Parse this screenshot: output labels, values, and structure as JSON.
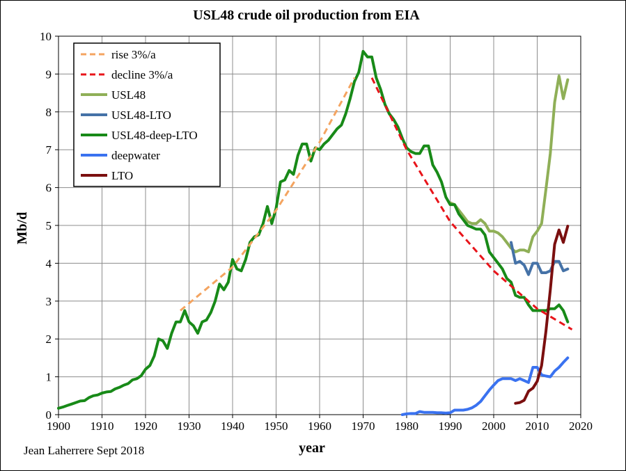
{
  "chart_data": {
    "type": "line",
    "title": "USL48 crude oil production from EIA",
    "xlabel": "year",
    "ylabel": "Mb/d",
    "xlim": [
      1900,
      2020
    ],
    "ylim": [
      0,
      10
    ],
    "x_ticks": [
      "1900",
      "1910",
      "1920",
      "1930",
      "1940",
      "1950",
      "1960",
      "1970",
      "1980",
      "1990",
      "2000",
      "2010",
      "2020"
    ],
    "y_ticks": [
      "0",
      "1",
      "2",
      "3",
      "4",
      "5",
      "6",
      "7",
      "8",
      "9",
      "10"
    ],
    "grid": true,
    "legend_position": "top-left",
    "credit": "Jean Laherrere Sept 2018",
    "series": [
      {
        "name": "rise  3%/a",
        "color": "#f4a460",
        "dashed": true,
        "width": 3,
        "x": [
          1928,
          1940,
          1950,
          1960,
          1968
        ],
        "y": [
          2.75,
          3.9,
          5.4,
          7.2,
          8.9
        ]
      },
      {
        "name": "decline 3%/a",
        "color": "#e8141a",
        "dashed": true,
        "width": 3,
        "x": [
          1972,
          1980,
          1990,
          2000,
          2010,
          2018
        ],
        "y": [
          8.9,
          7.0,
          5.1,
          3.8,
          2.8,
          2.25
        ]
      },
      {
        "name": "USL48",
        "color": "#8faf57",
        "dashed": false,
        "width": 4,
        "x": [
          1990,
          1991,
          1992,
          1993,
          1994,
          1995,
          1996,
          1997,
          1998,
          1999,
          2000,
          2001,
          2002,
          2003,
          2004,
          2005,
          2006,
          2007,
          2008,
          2009,
          2010,
          2011,
          2012,
          2013,
          2014,
          2015,
          2016,
          2017
        ],
        "y": [
          5.6,
          5.55,
          5.4,
          5.25,
          5.1,
          5.05,
          5.05,
          5.15,
          5.05,
          4.85,
          4.85,
          4.8,
          4.7,
          4.55,
          4.4,
          4.3,
          4.35,
          4.35,
          4.3,
          4.7,
          4.85,
          5.05,
          5.95,
          6.9,
          8.25,
          8.95,
          8.35,
          8.85
        ]
      },
      {
        "name": "USL48-LTO",
        "color": "#4572a7",
        "dashed": false,
        "width": 4,
        "x": [
          2004,
          2005,
          2006,
          2007,
          2008,
          2009,
          2010,
          2011,
          2012,
          2013,
          2014,
          2015,
          2016,
          2017
        ],
        "y": [
          4.55,
          4.0,
          4.05,
          3.95,
          3.7,
          4.0,
          4.0,
          3.75,
          3.75,
          3.8,
          4.05,
          4.05,
          3.8,
          3.85
        ]
      },
      {
        "name": "USL48-deep-LTO",
        "color": "#188a18",
        "dashed": false,
        "width": 4,
        "x": [
          1900,
          1901,
          1902,
          1903,
          1904,
          1905,
          1906,
          1907,
          1908,
          1909,
          1910,
          1911,
          1912,
          1913,
          1914,
          1915,
          1916,
          1917,
          1918,
          1919,
          1920,
          1921,
          1922,
          1923,
          1924,
          1925,
          1926,
          1927,
          1928,
          1929,
          1930,
          1931,
          1932,
          1933,
          1934,
          1935,
          1936,
          1937,
          1938,
          1939,
          1940,
          1941,
          1942,
          1943,
          1944,
          1945,
          1946,
          1947,
          1948,
          1949,
          1950,
          1951,
          1952,
          1953,
          1954,
          1955,
          1956,
          1957,
          1958,
          1959,
          1960,
          1961,
          1962,
          1963,
          1964,
          1965,
          1966,
          1967,
          1968,
          1969,
          1970,
          1971,
          1972,
          1973,
          1974,
          1975,
          1976,
          1977,
          1978,
          1979,
          1980,
          1981,
          1982,
          1983,
          1984,
          1985,
          1986,
          1987,
          1988,
          1989,
          1990,
          1991,
          1992,
          1993,
          1994,
          1995,
          1996,
          1997,
          1998,
          1999,
          2000,
          2001,
          2002,
          2003,
          2004,
          2005,
          2006,
          2007,
          2008,
          2009,
          2010,
          2011,
          2012,
          2013,
          2014,
          2015,
          2016,
          2017
        ],
        "y": [
          0.17,
          0.2,
          0.24,
          0.28,
          0.32,
          0.36,
          0.37,
          0.45,
          0.5,
          0.52,
          0.57,
          0.6,
          0.61,
          0.68,
          0.72,
          0.78,
          0.82,
          0.92,
          0.95,
          1.03,
          1.2,
          1.3,
          1.55,
          2.0,
          1.95,
          1.75,
          2.15,
          2.45,
          2.45,
          2.75,
          2.45,
          2.35,
          2.15,
          2.45,
          2.5,
          2.7,
          3.0,
          3.45,
          3.3,
          3.5,
          4.1,
          3.85,
          3.8,
          4.1,
          4.55,
          4.7,
          4.75,
          5.05,
          5.5,
          5.05,
          5.45,
          6.15,
          6.2,
          6.45,
          6.35,
          6.85,
          7.15,
          7.15,
          6.7,
          7.05,
          7.0,
          7.15,
          7.25,
          7.4,
          7.55,
          7.65,
          7.95,
          8.35,
          8.8,
          9.05,
          9.6,
          9.45,
          9.45,
          8.9,
          8.6,
          8.2,
          7.95,
          7.8,
          7.6,
          7.3,
          7.05,
          6.95,
          6.9,
          6.9,
          7.1,
          7.1,
          6.6,
          6.4,
          6.15,
          5.75,
          5.55,
          5.55,
          5.3,
          5.15,
          5.0,
          4.95,
          4.9,
          4.9,
          4.75,
          4.3,
          4.15,
          4.0,
          3.85,
          3.6,
          3.5,
          3.15,
          3.1,
          3.1,
          2.9,
          2.75,
          2.75,
          2.75,
          2.75,
          2.8,
          2.8,
          2.9,
          2.75,
          2.45
        ]
      },
      {
        "name": "deepwater",
        "color": "#3a72f0",
        "dashed": false,
        "width": 4,
        "x": [
          1979,
          1980,
          1981,
          1982,
          1983,
          1984,
          1985,
          1986,
          1987,
          1988,
          1989,
          1990,
          1991,
          1992,
          1993,
          1994,
          1995,
          1996,
          1997,
          1998,
          1999,
          2000,
          2001,
          2002,
          2003,
          2004,
          2005,
          2006,
          2007,
          2008,
          2009,
          2010,
          2011,
          2012,
          2013,
          2014,
          2015,
          2016,
          2017
        ],
        "y": [
          0.0,
          0.02,
          0.03,
          0.03,
          0.08,
          0.06,
          0.06,
          0.06,
          0.05,
          0.05,
          0.04,
          0.05,
          0.12,
          0.12,
          0.12,
          0.14,
          0.18,
          0.25,
          0.35,
          0.5,
          0.65,
          0.78,
          0.9,
          0.95,
          0.95,
          0.95,
          0.9,
          0.95,
          0.9,
          0.85,
          1.25,
          1.25,
          1.05,
          1.02,
          1.0,
          1.15,
          1.25,
          1.38,
          1.5
        ]
      },
      {
        "name": "LTO",
        "color": "#7b0f0f",
        "dashed": false,
        "width": 4,
        "x": [
          2005,
          2006,
          2007,
          2008,
          2009,
          2010,
          2011,
          2012,
          2013,
          2014,
          2015,
          2016,
          2017
        ],
        "y": [
          0.3,
          0.32,
          0.38,
          0.62,
          0.7,
          0.88,
          1.3,
          2.2,
          3.3,
          4.5,
          4.88,
          4.55,
          4.98
        ]
      }
    ]
  }
}
